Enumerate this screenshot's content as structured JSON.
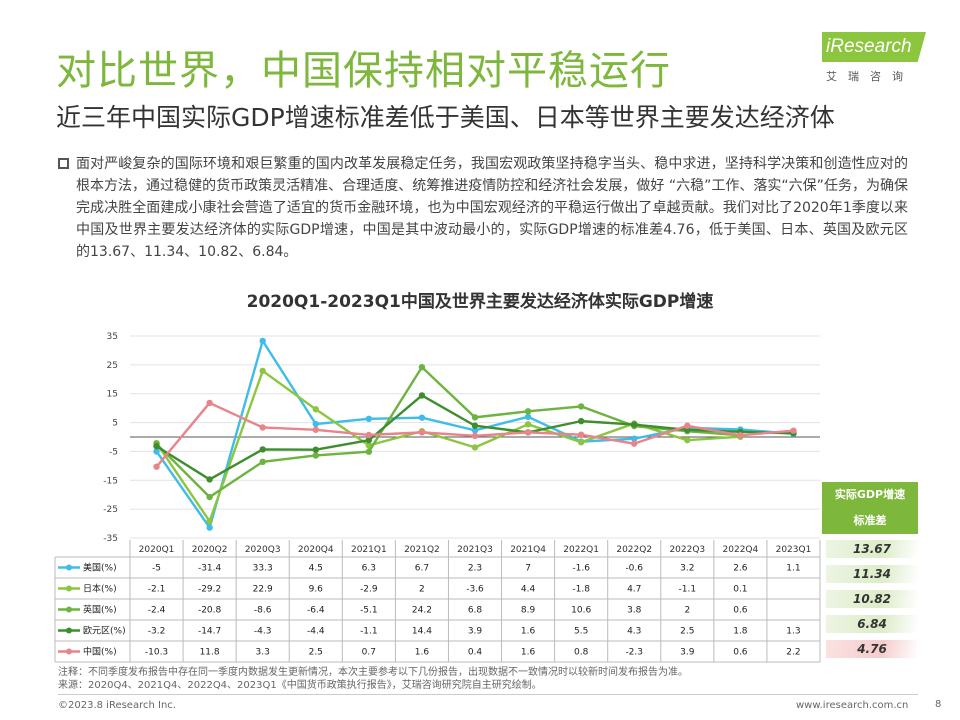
{
  "header": {
    "title": "对比世界，中国保持相对平稳运行",
    "subtitle": "近三年中国实际GDP增速标准差低于美国、日本等世界主要发达经济体"
  },
  "logo": {
    "main": "iResearch",
    "sub": "艾瑞咨询"
  },
  "body_text": "面对严峻复杂的国际环境和艰巨繁重的国内改革发展稳定任务，我国宏观政策坚持稳字当头、稳中求进，坚持科学决策和创造性应对的根本方法，通过稳健的货币政策灵活精准、合理适度、统筹推进疫情防控和经济社会发展，做好 “六稳”工作、落实“六保”任务，为确保完成决胜全面建成小康社会营造了适宜的货币金融环境，也为中国宏观经济的平稳运行做出了卓越贡献。我们对比了2020年1季度以来中国及世界主要发达经济体的实际GDP增速，中国是其中波动最小的，实际GDP增速的标准差4.76，低于美国、日本、英国及欧元区的13.67、11.34、10.82、6.84。",
  "chart_data": {
    "type": "line",
    "title": "2020Q1-2023Q1中国及世界主要发达经济体实际GDP增速",
    "categories": [
      "2020Q1",
      "2020Q2",
      "2020Q3",
      "2020Q4",
      "2021Q1",
      "2021Q2",
      "2021Q3",
      "2021Q4",
      "2022Q1",
      "2022Q2",
      "2022Q3",
      "2022Q4",
      "2023Q1"
    ],
    "yticks": [
      35,
      25,
      15,
      5,
      -5,
      -15,
      -25,
      -35
    ],
    "ylim": [
      -35,
      35
    ],
    "grid": "horizontal",
    "legend": "table-below",
    "series": [
      {
        "name": "美国(%)",
        "color": "#3DBDE8",
        "values": [
          -5,
          -31.4,
          33.3,
          4.5,
          6.3,
          6.7,
          2.3,
          7,
          -1.6,
          -0.6,
          3.2,
          2.6,
          1.1
        ]
      },
      {
        "name": "日本(%)",
        "color": "#8CC63F",
        "values": [
          -2.1,
          -29.2,
          22.9,
          9.6,
          -2.9,
          2,
          -3.6,
          4.4,
          -1.8,
          4.7,
          -1.1,
          0.1,
          null
        ]
      },
      {
        "name": "英国(%)",
        "color": "#6DB33F",
        "values": [
          -2.4,
          -20.8,
          -8.6,
          -6.4,
          -5.1,
          24.2,
          6.8,
          8.9,
          10.6,
          3.8,
          2,
          0.6,
          null
        ]
      },
      {
        "name": "欧元区(%)",
        "color": "#3E8E2F",
        "values": [
          -3.2,
          -14.7,
          -4.3,
          -4.4,
          -1.1,
          14.4,
          3.9,
          1.6,
          5.5,
          4.3,
          2.5,
          1.8,
          1.3
        ]
      },
      {
        "name": "中国(%)",
        "color": "#E8848A",
        "values": [
          -10.3,
          11.8,
          3.3,
          2.5,
          0.7,
          1.6,
          0.4,
          1.6,
          0.8,
          -2.3,
          3.9,
          0.6,
          2.2
        ]
      }
    ],
    "display_values": [
      [
        "-5",
        "-31.4",
        "33.3",
        "4.5",
        "6.3",
        "6.7",
        "2.3",
        "7",
        "-1.6",
        "-0.6",
        "3.2",
        "2.6",
        "1.1"
      ],
      [
        "-2.1",
        "-29.2",
        "22.9",
        "9.6",
        "-2.9",
        "2",
        "-3.6",
        "4.4",
        "-1.8",
        "4.7",
        "-1.1",
        "0.1",
        ""
      ],
      [
        "-2.4",
        "-20.8",
        "-8.6",
        "-6.4",
        "-5.1",
        "24.2",
        "6.8",
        "8.9",
        "10.6",
        "3.8",
        "2",
        "0.6",
        ""
      ],
      [
        "-3.2",
        "-14.7",
        "-4.3",
        "-4.4",
        "-1.1",
        "14.4",
        "3.9",
        "1.6",
        "5.5",
        "4.3",
        "2.5",
        "1.8",
        "1.3"
      ],
      [
        "-10.3",
        "11.8",
        "3.3",
        "2.5",
        "0.7",
        "1.6",
        "0.4",
        "1.6",
        "0.8",
        "-2.3",
        "3.9",
        "0.6",
        "2.2"
      ]
    ],
    "std_header": "实际GDP增速标准差",
    "std_header_lines": [
      "实际GDP增速",
      "标准差"
    ],
    "std_values": [
      "13.67",
      "11.34",
      "10.82",
      "6.84",
      "4.76"
    ]
  },
  "notes": {
    "line1": "注释：不同季度发布报告中存在同一季度内数据发生更新情况，本次主要参考以下几份报告，出现数据不一致情况时以较新时间发布报告为准。",
    "line2": "来源：2020Q4、2021Q4、2022Q4、2023Q1《中国货币政策执行报告》，艾瑞咨询研究院自主研究绘制。"
  },
  "footer": {
    "copyright": "©2023.8 iResearch Inc.",
    "website": "www.iresearch.com.cn",
    "page": "8"
  },
  "colors": {
    "accent": "#7DB73B",
    "china": "#E8848A",
    "us": "#3DBDE8"
  }
}
